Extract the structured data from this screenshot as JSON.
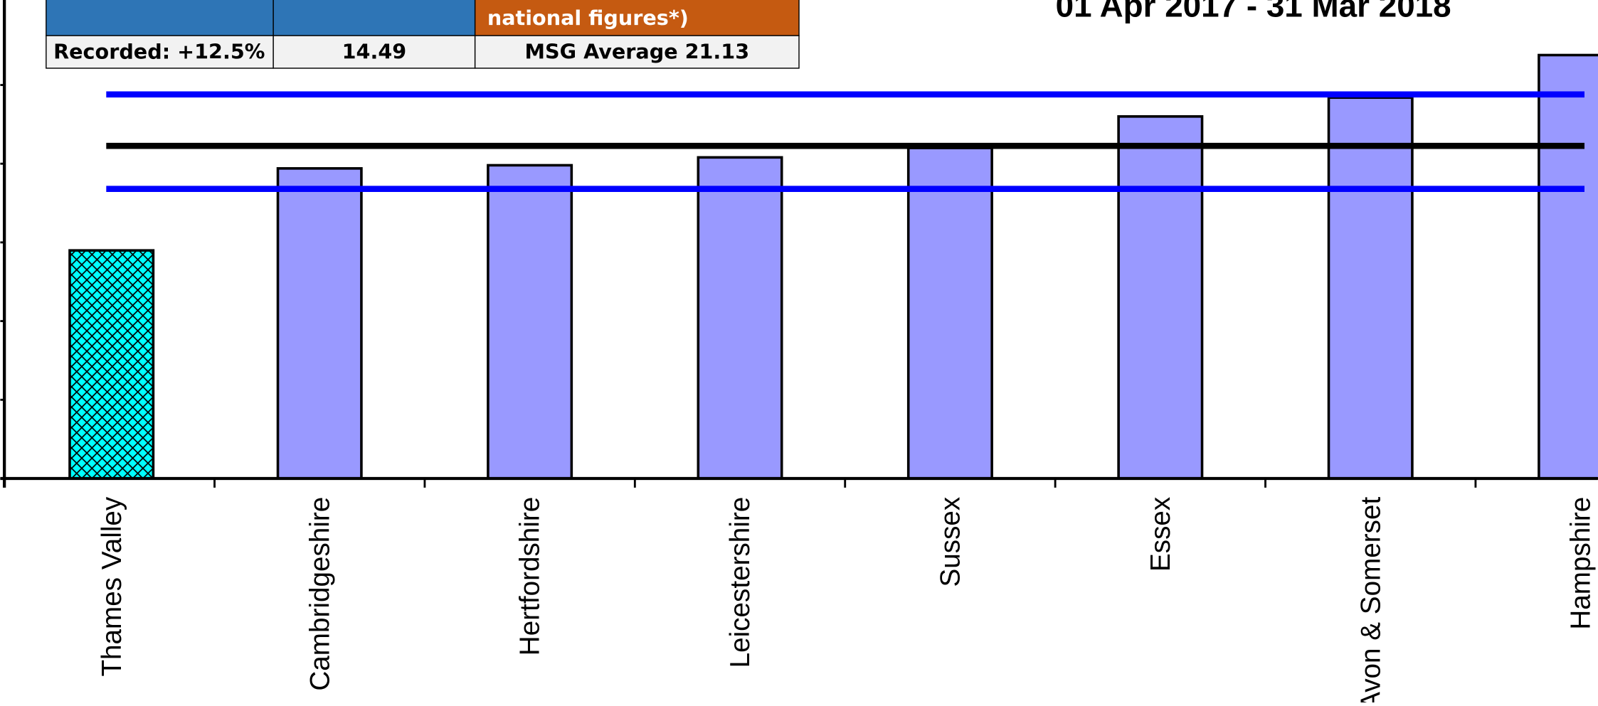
{
  "chart_data": {
    "type": "bar",
    "title": "01 Apr 2017 - 31 Mar 2018",
    "categories": [
      "Thames Valley",
      "Cambridgeshire",
      "Hertfordshire",
      "Leicestershire",
      "Sussex",
      "Essex",
      "Avon & Somerset",
      "Hampshire"
    ],
    "values": [
      14.49,
      19.7,
      19.9,
      20.4,
      21.0,
      23.0,
      24.2,
      26.9
    ],
    "color": "#9999ff",
    "highlight_index": 0,
    "highlight_color": "#00ffff",
    "average_line": {
      "value": 21.13,
      "color": "#000000"
    },
    "band_lines": {
      "values": [
        18.4,
        24.4
      ],
      "color": "#0000ff"
    },
    "ylim": [
      0,
      30.4
    ],
    "yticks": [
      0,
      5,
      10,
      15,
      20,
      25
    ],
    "grid": false
  },
  "table": {
    "header_note": "national figures*)",
    "row": [
      "Recorded: +12.5%",
      "14.49",
      "MSG Average 21.13"
    ]
  }
}
